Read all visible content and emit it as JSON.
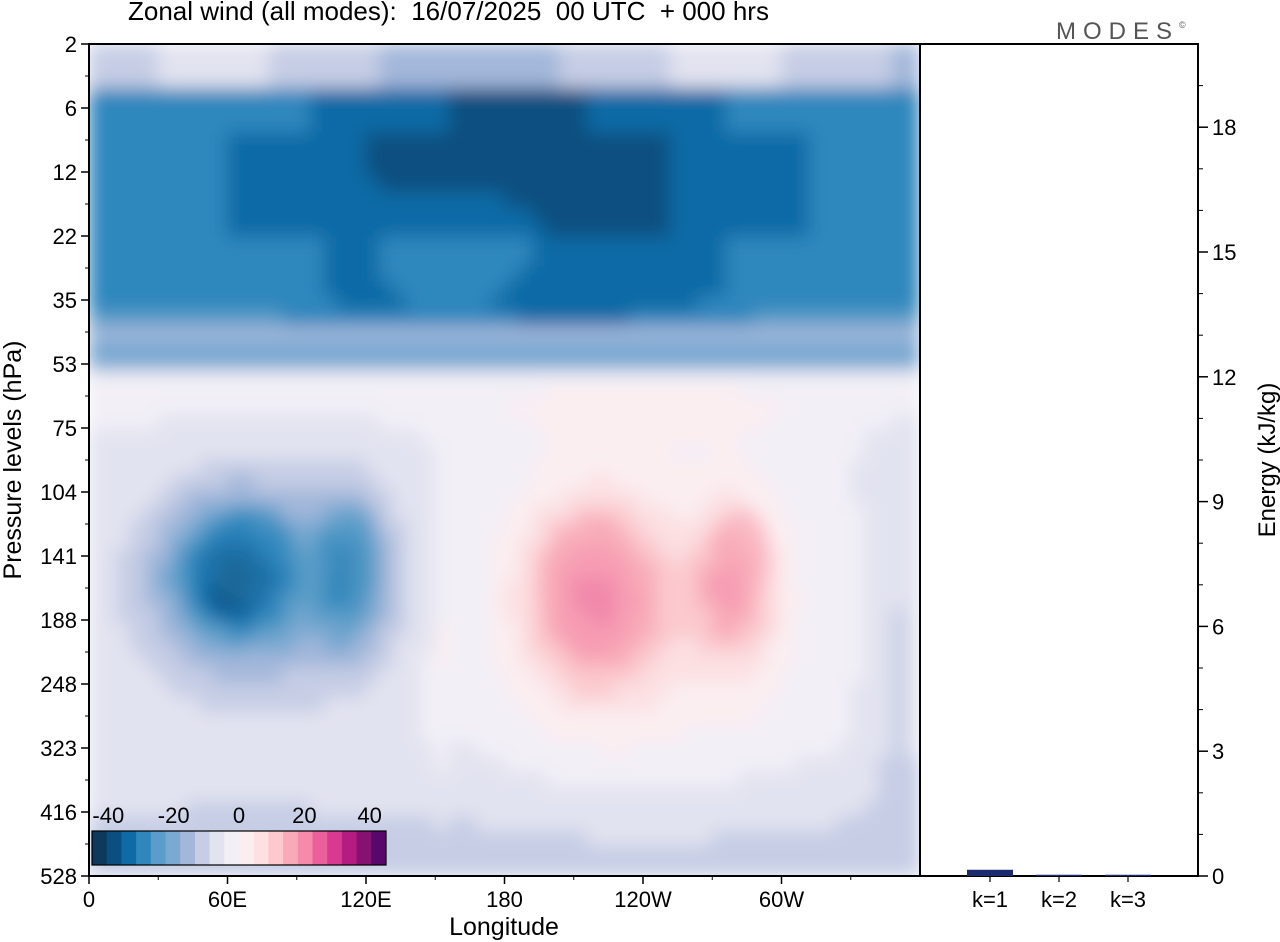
{
  "header": {
    "title": "Zonal wind (all modes):  16/07/2025  00 UTC  + 000 hrs",
    "logo": "MODES",
    "logo_mark": "©"
  },
  "colors": {
    "diverging": [
      "#0d3a5c",
      "#0a4f80",
      "#0f6aa6",
      "#2f87bd",
      "#5a9dc8",
      "#7aa9d2",
      "#a3b7da",
      "#c6cde5",
      "#e2e3f0",
      "#f2eff6",
      "#fbeef1",
      "#fce0e2",
      "#fbc9ce",
      "#f8aab8",
      "#f58aaa",
      "#e9609b",
      "#d73a8f",
      "#b41c82",
      "#861171",
      "#58086a"
    ],
    "bar": "#1c2a6e"
  },
  "chart_data": [
    {
      "type": "heatmap",
      "title": "Zonal wind (all modes):  16/07/2025  00 UTC  + 000 hrs",
      "xlabel": "Longitude",
      "ylabel": "Pressure levels (hPa)",
      "x_ticks": [
        "0",
        "60E",
        "120E",
        "180",
        "120W",
        "60W"
      ],
      "y_ticks": [
        "2",
        "6",
        "12",
        "22",
        "35",
        "53",
        "75",
        "104",
        "141",
        "188",
        "248",
        "323",
        "416",
        "528"
      ],
      "colorbar": {
        "ticks": [
          "-40",
          "-20",
          "0",
          "20",
          "40"
        ],
        "range": [
          -45,
          45
        ],
        "step": 5
      },
      "features": [
        {
          "region": "top jet 12-22 hPa",
          "lon_range": [
            0,
            360
          ],
          "levels": [
            "6",
            "35"
          ],
          "value": -32
        },
        {
          "region": "upper layer 2-6 hPa",
          "lon_range": [
            0,
            360
          ],
          "levels": [
            "2",
            "6"
          ],
          "value": -10
        },
        {
          "region": "easterly core",
          "lon_range": [
            50,
            90
          ],
          "levels": [
            "104",
            "188"
          ],
          "value": -30
        },
        {
          "region": "easterly core",
          "lon_range": [
            105,
            125
          ],
          "levels": [
            "104",
            "188"
          ],
          "value": -25
        },
        {
          "region": "westerly core",
          "lon_range": [
            195,
            240
          ],
          "levels": [
            "104",
            "248"
          ],
          "value": 20
        },
        {
          "region": "westerly core",
          "lon_range": [
            270,
            295
          ],
          "levels": [
            "104",
            "188"
          ],
          "value": 20
        }
      ]
    },
    {
      "type": "bar",
      "categories": [
        "k=1",
        "k=2",
        "k=3"
      ],
      "values": [
        0.15,
        0.03,
        0.03
      ],
      "ylabel": "Energy (kJ/kg)",
      "y_ticks": [
        "0",
        "3",
        "6",
        "9",
        "12",
        "15",
        "18"
      ],
      "ylim": [
        0,
        20
      ]
    }
  ]
}
